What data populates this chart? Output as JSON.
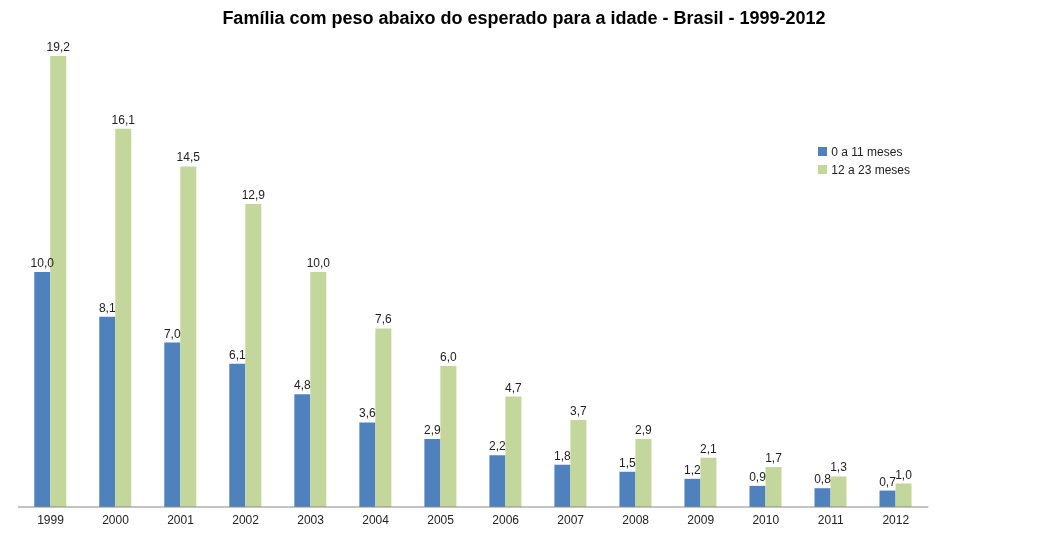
{
  "chart_data": {
    "type": "bar",
    "title": "Família com peso abaixo do esperado para a idade - Brasil - 1999-2012",
    "categories": [
      "1999",
      "2000",
      "2001",
      "2002",
      "2003",
      "2004",
      "2005",
      "2006",
      "2007",
      "2008",
      "2009",
      "2010",
      "2011",
      "2012"
    ],
    "series": [
      {
        "name": "0 a 11 meses",
        "color": "#4f81bd",
        "values": [
          10.0,
          8.1,
          7.0,
          6.1,
          4.8,
          3.6,
          2.9,
          2.2,
          1.8,
          1.5,
          1.2,
          0.9,
          0.8,
          0.7
        ],
        "value_labels": [
          "10,0",
          "8,1",
          "7,0",
          "6,1",
          "4,8",
          "3,6",
          "2,9",
          "2,2",
          "1,8",
          "1,5",
          "1,2",
          "0,9",
          "0,8",
          "0,7"
        ]
      },
      {
        "name": "12 a 23 meses",
        "color": "#c3d69b",
        "values": [
          19.2,
          16.1,
          14.5,
          12.9,
          10.0,
          7.6,
          6.0,
          4.7,
          3.7,
          2.9,
          2.1,
          1.7,
          1.3,
          1.0
        ],
        "value_labels": [
          "19,2",
          "16,1",
          "14,5",
          "12,9",
          "10,0",
          "7,6",
          "6,0",
          "4,7",
          "3,7",
          "2,9",
          "2,1",
          "1,7",
          "1,3",
          "1,0"
        ]
      }
    ],
    "legend": "top right"
  }
}
